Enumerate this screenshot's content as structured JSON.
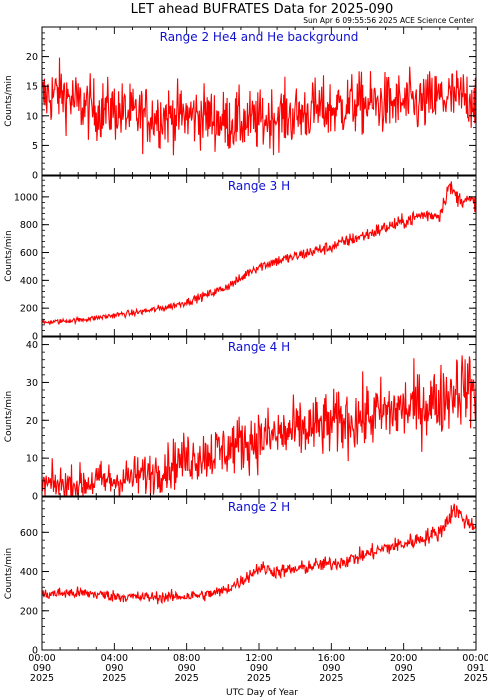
{
  "title": "LET ahead BUFRATES Data for 2025-090",
  "timestamp": "Sun Apr  6 09:55:56 2025 ACE Science Center",
  "xlabel": "UTC Day of Year",
  "colors": {
    "series": "#ff0000",
    "panel_label": "#1010d0",
    "axes": "#000000"
  },
  "x_ticks": [
    {
      "hour": 0,
      "time": "00:00",
      "doy": "090",
      "year": "2025"
    },
    {
      "hour": 4,
      "time": "04:00",
      "doy": "090",
      "year": "2025"
    },
    {
      "hour": 8,
      "time": "08:00",
      "doy": "090",
      "year": "2025"
    },
    {
      "hour": 12,
      "time": "12:00",
      "doy": "090",
      "year": "2025"
    },
    {
      "hour": 16,
      "time": "16:00",
      "doy": "090",
      "year": "2025"
    },
    {
      "hour": 20,
      "time": "20:00",
      "doy": "090",
      "year": "2025"
    },
    {
      "hour": 24,
      "time": "00:00",
      "doy": "091",
      "year": "2025"
    }
  ],
  "chart_data": [
    {
      "type": "line",
      "label": "Range 2 He4 and He background",
      "ylabel": "Counts/min",
      "xlim": [
        0,
        24
      ],
      "ylim": [
        0,
        25
      ],
      "yticks": [
        0,
        5,
        10,
        15,
        20
      ],
      "x": [
        0,
        1,
        2,
        3,
        4,
        5,
        6,
        7,
        8,
        9,
        10,
        11,
        12,
        13,
        14,
        15,
        16,
        17,
        18,
        19,
        20,
        21,
        22,
        23,
        24
      ],
      "y": [
        13,
        14,
        12,
        11,
        11,
        10,
        10,
        10,
        10,
        10,
        9,
        9,
        9,
        10,
        10,
        11,
        11,
        12,
        12,
        12,
        12,
        12,
        13,
        13,
        13
      ]
    },
    {
      "type": "line",
      "label": "Range 3 H",
      "ylabel": "Counts/min",
      "xlim": [
        0,
        24
      ],
      "ylim": [
        0,
        1150
      ],
      "yticks": [
        0,
        200,
        400,
        600,
        800,
        1000
      ],
      "x": [
        0,
        1,
        2,
        3,
        4,
        5,
        6,
        7,
        8,
        9,
        10,
        11,
        11.5,
        12,
        13,
        14,
        15,
        16,
        17,
        18,
        19,
        20,
        21,
        22,
        22.5,
        23,
        24
      ],
      "y": [
        95,
        105,
        115,
        130,
        150,
        165,
        185,
        210,
        245,
        290,
        340,
        410,
        470,
        500,
        540,
        570,
        610,
        640,
        690,
        730,
        780,
        820,
        870,
        870,
        1080,
        990,
        960
      ]
    },
    {
      "type": "line",
      "label": "Range 4 H",
      "ylabel": "Counts/min",
      "xlim": [
        0,
        24
      ],
      "ylim": [
        0,
        42
      ],
      "yticks": [
        0,
        10,
        20,
        30,
        40
      ],
      "x": [
        0,
        1,
        2,
        3,
        4,
        5,
        6,
        7,
        8,
        9,
        10,
        11,
        12,
        13,
        14,
        15,
        16,
        17,
        18,
        19,
        20,
        21,
        22,
        23,
        24
      ],
      "y": [
        3,
        3,
        3,
        4,
        4,
        5,
        6,
        8,
        10,
        11,
        12,
        14,
        15,
        16,
        17,
        18,
        19,
        20,
        21,
        22,
        23,
        24,
        25,
        29,
        28
      ]
    },
    {
      "type": "line",
      "label": "Range 2 H",
      "ylabel": "Counts/min",
      "xlim": [
        0,
        24
      ],
      "ylim": [
        0,
        780
      ],
      "yticks": [
        0,
        200,
        400,
        600
      ],
      "x": [
        0,
        1,
        2,
        3,
        4,
        5,
        6,
        7,
        8,
        9,
        10,
        11,
        12,
        13,
        14,
        15,
        16,
        17,
        18,
        19,
        20,
        21,
        22,
        22.8,
        23.5,
        24
      ],
      "y": [
        280,
        290,
        290,
        285,
        275,
        270,
        270,
        270,
        275,
        280,
        300,
        350,
        420,
        400,
        410,
        430,
        440,
        460,
        490,
        520,
        540,
        570,
        600,
        720,
        650,
        640
      ]
    }
  ]
}
